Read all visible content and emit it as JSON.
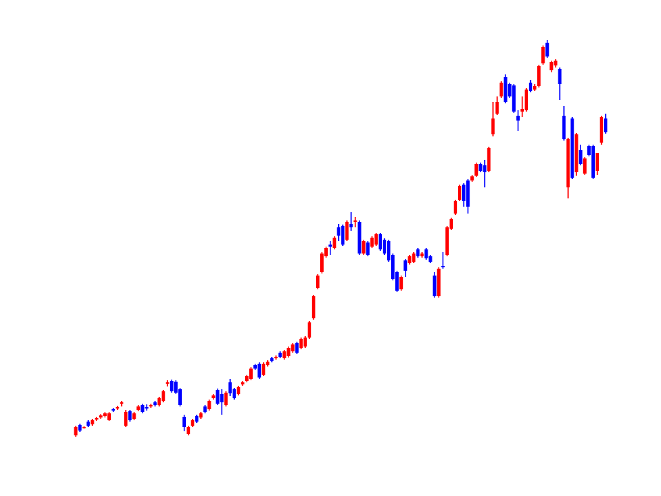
{
  "chart_data": {
    "type": "candlestick",
    "ylim": [
      0,
      720
    ],
    "up_color": "#ff0000",
    "down_color": "#0000ff",
    "open": [
      88,
      103,
      99,
      108,
      104,
      111,
      114,
      116,
      110,
      126,
      127,
      134,
      102,
      123,
      112,
      125,
      132,
      129,
      130,
      136,
      132,
      138,
      163,
      167,
      166,
      155,
      115,
      90,
      102,
      116,
      114,
      130,
      126,
      142,
      154,
      148,
      132,
      165,
      155,
      148,
      162,
      167,
      170,
      190,
      192,
      176,
      190,
      200,
      200,
      208,
      200,
      203,
      210,
      222,
      215,
      217,
      230,
      258,
      302,
      325,
      348,
      365,
      360,
      390,
      392,
      372,
      395,
      398,
      398,
      352,
      368,
      362,
      365,
      380,
      372,
      370,
      350,
      325,
      300,
      342,
      338,
      340,
      358,
      348,
      358,
      348,
      320,
      290,
      334,
      350,
      388,
      410,
      430,
      452,
      458,
      458,
      465,
      482,
      480,
      472,
      525,
      555,
      580,
      608,
      598,
      596,
      552,
      558,
      560,
      600,
      590,
      595,
      628,
      658,
      618,
      625,
      620,
      552,
      448,
      548,
      470,
      502,
      468,
      508,
      508,
      472,
      513,
      548
    ],
    "high": [
      102,
      105,
      101,
      110,
      112,
      115,
      119,
      122,
      122,
      128,
      131,
      138,
      125,
      125,
      122,
      132,
      134,
      133,
      134,
      138,
      144,
      154,
      168,
      169,
      168,
      157,
      118,
      102,
      112,
      118,
      122,
      132,
      140,
      148,
      156,
      155,
      152,
      170,
      157,
      160,
      167,
      176,
      187,
      192,
      194,
      194,
      197,
      202,
      204,
      210,
      212,
      217,
      222,
      224,
      230,
      232,
      254,
      292,
      322,
      354,
      362,
      370,
      377,
      395,
      394,
      400,
      412,
      405,
      400,
      372,
      370,
      377,
      382,
      382,
      374,
      372,
      352,
      327,
      320,
      344,
      350,
      354,
      360,
      354,
      360,
      350,
      325,
      332,
      354,
      392,
      404,
      430,
      452,
      454,
      460,
      466,
      484,
      484,
      488,
      507,
      572,
      580,
      602,
      612,
      600,
      598,
      560,
      580,
      592,
      604,
      598,
      626,
      654,
      662,
      632,
      634,
      622,
      566,
      520,
      550,
      527,
      510,
      492,
      510,
      510,
      498,
      552,
      555
    ],
    "low": [
      86,
      93,
      98,
      100,
      102,
      109,
      112,
      114,
      109,
      122,
      125,
      130,
      100,
      108,
      110,
      123,
      120,
      124,
      128,
      130,
      130,
      136,
      159,
      150,
      148,
      130,
      94,
      88,
      100,
      106,
      112,
      120,
      124,
      140,
      132,
      118,
      130,
      145,
      140,
      146,
      160,
      165,
      168,
      183,
      170,
      174,
      188,
      194,
      198,
      200,
      198,
      201,
      208,
      206,
      213,
      215,
      228,
      256,
      300,
      323,
      346,
      350,
      358,
      370,
      363,
      370,
      385,
      390,
      350,
      350,
      348,
      360,
      363,
      356,
      350,
      340,
      313,
      296,
      298,
      318,
      336,
      338,
      346,
      346,
      343,
      338,
      288,
      288,
      330,
      348,
      386,
      408,
      428,
      420,
      410,
      456,
      463,
      470,
      448,
      470,
      522,
      553,
      578,
      570,
      578,
      556,
      530,
      550,
      558,
      586,
      588,
      593,
      626,
      636,
      615,
      622,
      575,
      516,
      432,
      460,
      465,
      480,
      466,
      493,
      460,
      466,
      510,
      526
    ],
    "close": [
      100,
      95,
      100,
      102,
      110,
      113,
      117,
      120,
      120,
      124,
      129,
      136,
      122,
      110,
      120,
      130,
      122,
      127,
      132,
      132,
      142,
      152,
      165,
      152,
      150,
      132,
      100,
      100,
      110,
      108,
      120,
      122,
      138,
      146,
      134,
      136,
      150,
      149,
      142,
      158,
      165,
      174,
      185,
      185,
      172,
      192,
      195,
      196,
      202,
      202,
      210,
      215,
      220,
      208,
      228,
      230,
      252,
      290,
      320,
      352,
      360,
      362,
      375,
      378,
      365,
      398,
      390,
      400,
      352,
      370,
      350,
      375,
      380,
      358,
      352,
      342,
      315,
      298,
      318,
      327,
      348,
      352,
      348,
      352,
      345,
      340,
      290,
      330,
      332,
      390,
      402,
      428,
      450,
      428,
      420,
      464,
      482,
      472,
      470,
      505,
      548,
      572,
      600,
      572,
      580,
      558,
      545,
      562,
      590,
      588,
      595,
      624,
      652,
      638,
      630,
      632,
      598,
      518,
      518,
      462,
      525,
      482,
      490,
      495,
      462,
      498,
      550,
      528
    ]
  }
}
